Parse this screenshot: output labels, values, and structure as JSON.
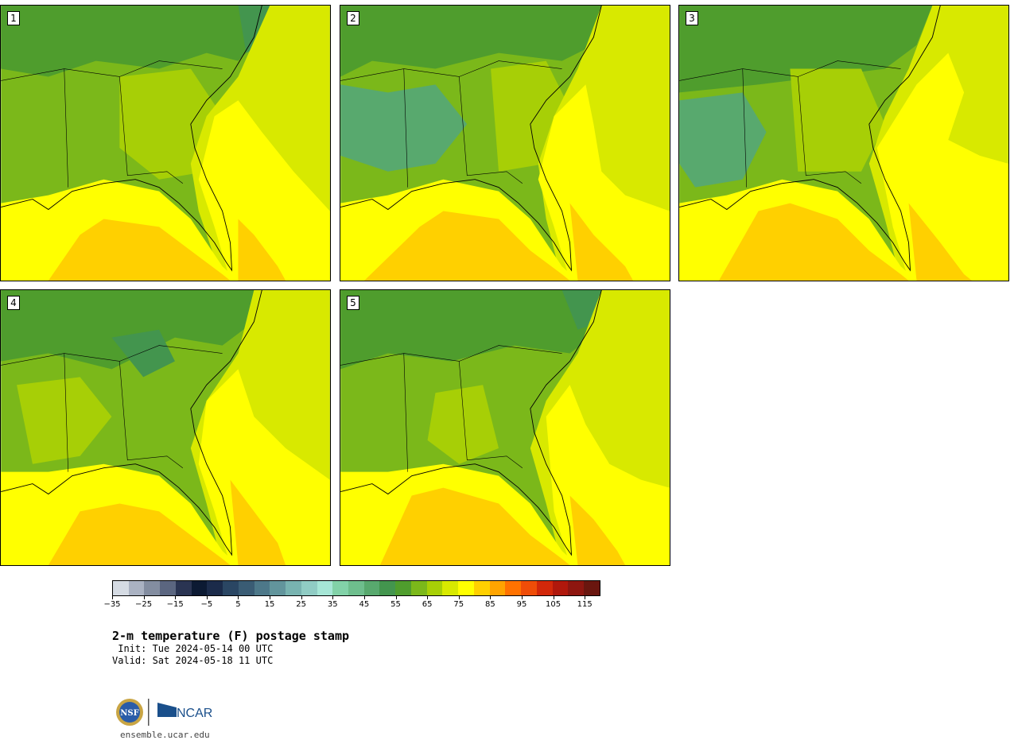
{
  "panels": [
    {
      "label": "1"
    },
    {
      "label": "2"
    },
    {
      "label": "3"
    },
    {
      "label": "4"
    },
    {
      "label": "5"
    }
  ],
  "colorbar": {
    "colors": [
      "#d5dbe3",
      "#aab2c2",
      "#838da0",
      "#5b6680",
      "#2a3452",
      "#0c1a33",
      "#1b2b4a",
      "#2a4663",
      "#3a5c74",
      "#4d7889",
      "#62959c",
      "#78b3b0",
      "#90ccc4",
      "#a6e6d6",
      "#82d2a8",
      "#6ebe8d",
      "#58a96e",
      "#43954e",
      "#4f9d2d",
      "#7bb81a",
      "#a7cf06",
      "#d8e900",
      "#ffff00",
      "#ffd000",
      "#ffa400",
      "#ff7200",
      "#ef4d08",
      "#d2280a",
      "#b0180c",
      "#8e1610",
      "#6a160f"
    ],
    "ticks": [
      "−35",
      "−25",
      "−15",
      "−5",
      "5",
      "15",
      "25",
      "35",
      "45",
      "55",
      "65",
      "75",
      "85",
      "95",
      "105",
      "115"
    ]
  },
  "title": "2-m temperature (F) postage stamp",
  "init": " Init: Tue 2024-05-14 00 UTC",
  "valid": "Valid: Sat 2024-05-18 11 UTC",
  "site": "ensemble.ucar.edu",
  "logo_text": {
    "nsf": "NSF",
    "ncar": "NCAR"
  }
}
